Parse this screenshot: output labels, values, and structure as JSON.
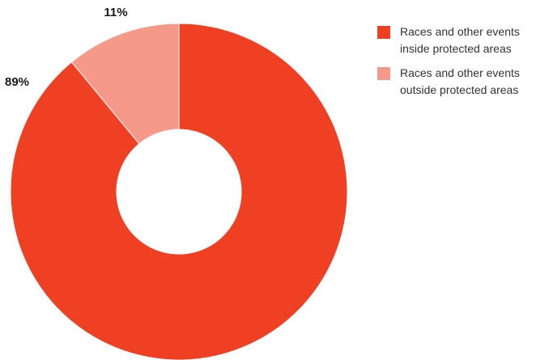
{
  "chart_data": {
    "type": "pie",
    "variant": "donut",
    "title": "",
    "categories": [
      "Races and other events inside protected areas",
      "Races and other events outside protected areas"
    ],
    "values": [
      89,
      11
    ],
    "value_labels": [
      "89%",
      "11%"
    ],
    "colors": [
      "#f04023",
      "#f7998a"
    ],
    "legend_position": "top-right"
  },
  "legend": {
    "items": [
      {
        "line1": "Races and other events",
        "line2": "inside protected areas",
        "color": "#f04023"
      },
      {
        "line1": "Races and other events",
        "line2": "outside protected areas",
        "color": "#f7998a"
      }
    ]
  }
}
